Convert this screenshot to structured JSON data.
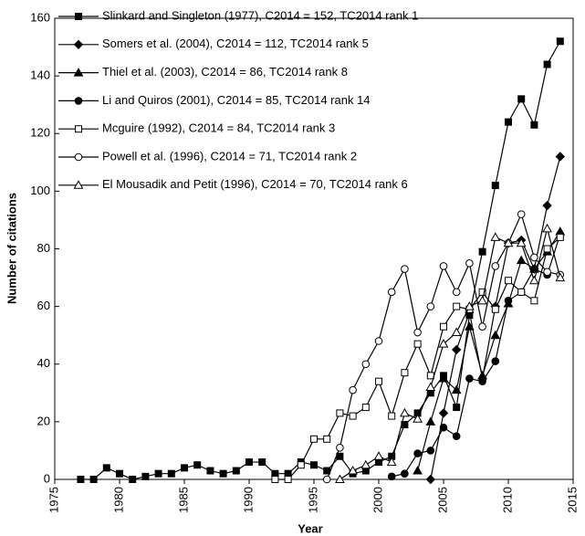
{
  "chart_data": {
    "type": "line",
    "x_label": "Year",
    "y_label": "Number of citations",
    "xlim": [
      1975,
      2015
    ],
    "xticks": [
      1975,
      1980,
      1985,
      1990,
      1995,
      2000,
      2005,
      2010,
      2015
    ],
    "ylim": [
      0,
      160
    ],
    "yticks": [
      0,
      20,
      40,
      60,
      80,
      100,
      120,
      140,
      160
    ],
    "grid": false,
    "legend": "upper left",
    "series": [
      {
        "name": "Slinkard and Singleton (1977), C2014 = 152, TC2014 rank 1",
        "color": "#000000",
        "marker": "square",
        "filled": true,
        "x": [
          1977,
          1978,
          1979,
          1980,
          1981,
          1982,
          1983,
          1984,
          1985,
          1986,
          1987,
          1988,
          1989,
          1990,
          1991,
          1992,
          1993,
          1994,
          1995,
          1996,
          1997,
          1998,
          1999,
          2000,
          2001,
          2002,
          2003,
          2004,
          2005,
          2006,
          2007,
          2008,
          2009,
          2010,
          2011,
          2012,
          2013,
          2014
        ],
        "values": [
          0,
          0,
          4,
          2,
          0,
          1,
          2,
          2,
          4,
          5,
          3,
          2,
          3,
          6,
          6,
          2,
          2,
          6,
          5,
          3,
          8,
          2,
          3,
          6,
          8,
          19,
          23,
          30,
          36,
          25,
          57,
          79,
          102,
          124,
          132,
          123,
          144,
          152
        ]
      },
      {
        "name": "Somers et al. (2004), C2014 = 112, TC2014 rank 5",
        "color": "#000000",
        "marker": "diamond",
        "filled": true,
        "x": [
          2004,
          2005,
          2006,
          2007,
          2008,
          2009,
          2010,
          2011,
          2012,
          2013,
          2014
        ],
        "values": [
          0,
          23,
          45,
          58,
          35,
          60,
          82,
          83,
          73,
          95,
          112
        ]
      },
      {
        "name": "Thiel et al. (2003), C2014 = 86, TC2014 rank 8",
        "color": "#000000",
        "marker": "triangle",
        "filled": true,
        "x": [
          2003,
          2004,
          2005,
          2006,
          2007,
          2008,
          2009,
          2010,
          2011,
          2012,
          2013,
          2014
        ],
        "values": [
          3,
          20,
          35,
          31,
          53,
          36,
          50,
          61,
          76,
          73,
          79,
          86
        ]
      },
      {
        "name": "Li and Quiros (2001), C2014 = 85, TC2014 rank 14",
        "color": "#000000",
        "marker": "circle",
        "filled": true,
        "x": [
          2001,
          2002,
          2003,
          2004,
          2005,
          2006,
          2007,
          2008,
          2009,
          2010,
          2011,
          2012,
          2013,
          2014
        ],
        "values": [
          1,
          2,
          9,
          10,
          18,
          15,
          35,
          34,
          41,
          62,
          65,
          73,
          71,
          85
        ]
      },
      {
        "name": "Mcguire (1992), C2014 = 84, TC2014 rank 3",
        "color": "#000000",
        "marker": "square",
        "filled": false,
        "x": [
          1992,
          1993,
          1994,
          1995,
          1996,
          1997,
          1998,
          1999,
          2000,
          2001,
          2002,
          2003,
          2004,
          2005,
          2006,
          2007,
          2008,
          2009,
          2010,
          2011,
          2012,
          2013,
          2014
        ],
        "values": [
          0,
          0,
          5,
          14,
          14,
          23,
          22,
          25,
          34,
          22,
          37,
          47,
          36,
          53,
          60,
          59,
          65,
          59,
          69,
          65,
          62,
          80,
          84
        ]
      },
      {
        "name": "Powell et al. (1996), C2014 = 71, TC2014 rank 2",
        "color": "#000000",
        "marker": "circle",
        "filled": false,
        "x": [
          1996,
          1997,
          1998,
          1999,
          2000,
          2001,
          2002,
          2003,
          2004,
          2005,
          2006,
          2007,
          2008,
          2009,
          2010,
          2011,
          2012,
          2013,
          2014
        ],
        "values": [
          0,
          11,
          31,
          40,
          48,
          65,
          73,
          51,
          60,
          74,
          65,
          75,
          53,
          74,
          82,
          92,
          77,
          72,
          71
        ]
      },
      {
        "name": "El Mousadik and Petit (1996), C2014 = 70, TC2014 rank 6",
        "color": "#000000",
        "marker": "triangle",
        "filled": false,
        "x": [
          1997,
          1998,
          1999,
          2000,
          2001,
          2002,
          2003,
          2004,
          2005,
          2006,
          2007,
          2008,
          2009,
          2010,
          2011,
          2012,
          2013,
          2014
        ],
        "values": [
          0,
          3,
          5,
          8,
          6,
          23,
          21,
          32,
          47,
          51,
          60,
          62,
          84,
          82,
          82,
          69,
          87,
          70
        ]
      }
    ]
  }
}
